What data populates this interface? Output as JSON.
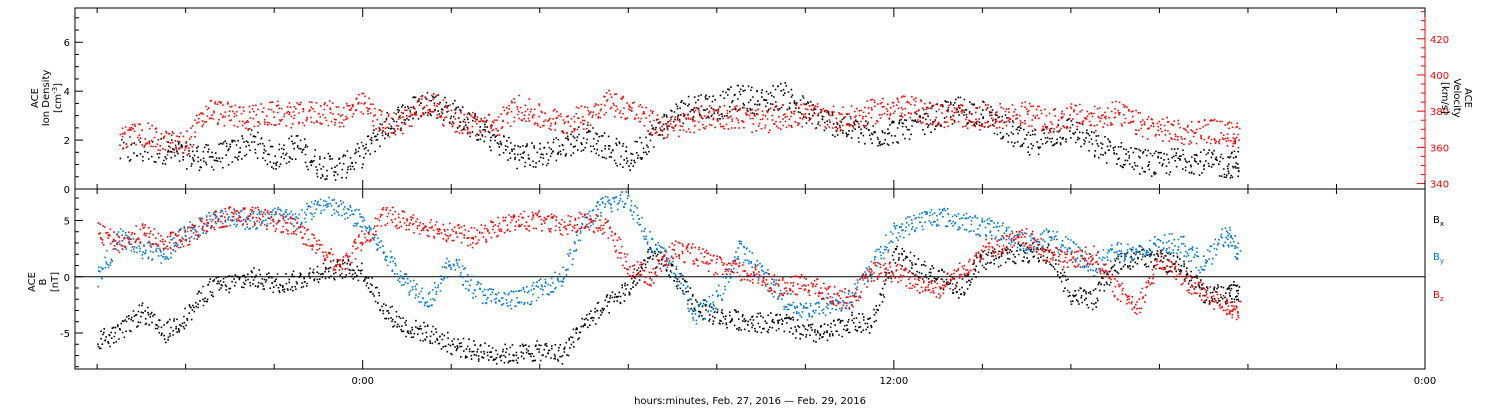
{
  "chart_data": [
    {
      "type": "scatter",
      "panel": "top",
      "left_axis": {
        "label_lines": [
          "ACE",
          "Ion Density"
        ],
        "unit": "[cm",
        "unit_sup": "-3",
        "unit_close": "]",
        "ylim": [
          0,
          7.4
        ],
        "ticks": [
          0,
          2,
          4,
          6
        ],
        "color": "#000000"
      },
      "right_axis": {
        "label_lines": [
          "ACE",
          "Velocity",
          "[km/s]"
        ],
        "ylim": [
          337,
          437
        ],
        "ticks": [
          340,
          360,
          380,
          400,
          420
        ],
        "color": "#ff0000"
      },
      "series": [
        {
          "color": "#000000",
          "axis": "left",
          "points": [
            [
              -5.5,
              1.5
            ],
            [
              -4.5,
              1.6
            ],
            [
              -4.0,
              1.4
            ],
            [
              -3.5,
              1.3
            ],
            [
              -3.0,
              1.5
            ],
            [
              -2.5,
              2.0
            ],
            [
              -2.0,
              1.3
            ],
            [
              -1.5,
              1.8
            ],
            [
              -1.0,
              1.0
            ],
            [
              -0.5,
              0.9
            ],
            [
              0.0,
              1.5
            ],
            [
              0.5,
              2.6
            ],
            [
              1.0,
              3.2
            ],
            [
              1.5,
              3.6
            ],
            [
              2.0,
              3.2
            ],
            [
              2.5,
              2.6
            ],
            [
              3.0,
              2.0
            ],
            [
              3.5,
              1.4
            ],
            [
              4.0,
              1.4
            ],
            [
              4.5,
              1.8
            ],
            [
              5.0,
              2.2
            ],
            [
              5.5,
              1.8
            ],
            [
              6.0,
              1.2
            ],
            [
              6.5,
              2.2
            ],
            [
              7.0,
              3.0
            ],
            [
              7.5,
              3.5
            ],
            [
              8.0,
              3.4
            ],
            [
              8.5,
              3.8
            ],
            [
              9.0,
              3.6
            ],
            [
              9.5,
              3.9
            ],
            [
              10.0,
              3.2
            ],
            [
              10.5,
              2.8
            ],
            [
              11.0,
              2.5
            ],
            [
              11.5,
              2.2
            ],
            [
              12.0,
              2.4
            ],
            [
              12.5,
              2.7
            ],
            [
              13.0,
              3.0
            ],
            [
              13.5,
              3.3
            ],
            [
              14.0,
              3.1
            ],
            [
              14.5,
              2.5
            ],
            [
              15.0,
              1.8
            ],
            [
              15.5,
              2.2
            ],
            [
              16.0,
              2.5
            ],
            [
              16.5,
              1.8
            ],
            [
              17.0,
              1.5
            ],
            [
              17.5,
              1.2
            ],
            [
              18.0,
              1.0
            ],
            [
              18.5,
              1.3
            ],
            [
              19.0,
              1.1
            ],
            [
              19.5,
              1.0
            ],
            [
              19.8,
              1.1
            ]
          ]
        },
        {
          "color": "#ff0000",
          "axis": "right",
          "points": [
            [
              -5.5,
              365
            ],
            [
              -5.0,
              368
            ],
            [
              -4.5,
              363
            ],
            [
              -4.0,
              362
            ],
            [
              -3.5,
              381
            ],
            [
              -3.0,
              378
            ],
            [
              -2.5,
              377
            ],
            [
              -2.0,
              379
            ],
            [
              -1.5,
              378
            ],
            [
              -1.0,
              380
            ],
            [
              -0.5,
              378
            ],
            [
              0.0,
              384
            ],
            [
              0.5,
              372
            ],
            [
              1.0,
              376
            ],
            [
              1.5,
              386
            ],
            [
              2.0,
              376
            ],
            [
              2.5,
              373
            ],
            [
              3.0,
              372
            ],
            [
              3.5,
              383
            ],
            [
              4.0,
              377
            ],
            [
              4.5,
              374
            ],
            [
              5.0,
              377
            ],
            [
              5.5,
              386
            ],
            [
              6.0,
              382
            ],
            [
              6.5,
              374
            ],
            [
              7.0,
              371
            ],
            [
              7.5,
              376
            ],
            [
              8.0,
              378
            ],
            [
              8.5,
              377
            ],
            [
              9.0,
              374
            ],
            [
              9.5,
              378
            ],
            [
              10.0,
              378
            ],
            [
              10.5,
              377
            ],
            [
              11.0,
              376
            ],
            [
              11.5,
              380
            ],
            [
              12.0,
              383
            ],
            [
              12.5,
              381
            ],
            [
              13.0,
              378
            ],
            [
              13.5,
              378
            ],
            [
              14.0,
              377
            ],
            [
              14.5,
              378
            ],
            [
              15.0,
              379
            ],
            [
              15.5,
              374
            ],
            [
              16.0,
              378
            ],
            [
              16.5,
              376
            ],
            [
              17.0,
              380
            ],
            [
              17.5,
              373
            ],
            [
              18.0,
              371
            ],
            [
              18.5,
              368
            ],
            [
              19.0,
              370
            ],
            [
              19.5,
              368
            ],
            [
              19.8,
              367
            ]
          ]
        }
      ]
    },
    {
      "type": "scatter",
      "panel": "bottom",
      "left_axis": {
        "label_lines": [
          "ACE",
          "B",
          "[nT]"
        ],
        "ylim": [
          -8.2,
          7.8
        ],
        "ticks": [
          -5,
          0,
          5
        ],
        "color": "#000000"
      },
      "legend": [
        {
          "label": "B",
          "sub": "x",
          "color": "#000000"
        },
        {
          "label": "B",
          "sub": "y",
          "color": "#0078d7"
        },
        {
          "label": "B",
          "sub": "z",
          "color": "#ff0000"
        }
      ],
      "zero_line": true,
      "series": [
        {
          "name": "Bx",
          "color": "#000000",
          "points": [
            [
              -6.0,
              -5.5
            ],
            [
              -5.5,
              -5.0
            ],
            [
              -5.0,
              -3.0
            ],
            [
              -4.5,
              -5.0
            ],
            [
              -4.0,
              -3.5
            ],
            [
              -3.5,
              -1.0
            ],
            [
              -3.0,
              -0.5
            ],
            [
              -2.5,
              0.0
            ],
            [
              -2.0,
              -0.5
            ],
            [
              -1.5,
              -0.3
            ],
            [
              -1.0,
              0.5
            ],
            [
              -0.5,
              0.8
            ],
            [
              0.0,
              0.5
            ],
            [
              0.5,
              -3.0
            ],
            [
              1.0,
              -4.5
            ],
            [
              1.5,
              -5.0
            ],
            [
              2.0,
              -6.0
            ],
            [
              2.5,
              -6.5
            ],
            [
              3.0,
              -6.8
            ],
            [
              3.5,
              -6.8
            ],
            [
              4.0,
              -6.5
            ],
            [
              4.5,
              -6.8
            ],
            [
              5.0,
              -4.0
            ],
            [
              5.5,
              -2.5
            ],
            [
              6.0,
              -1.0
            ],
            [
              6.5,
              2.0
            ],
            [
              7.0,
              0.5
            ],
            [
              7.5,
              -2.5
            ],
            [
              8.0,
              -3.5
            ],
            [
              8.5,
              -3.8
            ],
            [
              9.0,
              -4.0
            ],
            [
              9.5,
              -4.0
            ],
            [
              10.0,
              -5.0
            ],
            [
              10.5,
              -5.0
            ],
            [
              11.0,
              -4.0
            ],
            [
              11.5,
              -4.2
            ],
            [
              12.0,
              2.0
            ],
            [
              12.5,
              1.0
            ],
            [
              13.0,
              0.0
            ],
            [
              13.5,
              -1.0
            ],
            [
              14.0,
              1.5
            ],
            [
              14.5,
              2.0
            ],
            [
              15.0,
              2.2
            ],
            [
              15.5,
              2.0
            ],
            [
              16.0,
              -1.5
            ],
            [
              16.5,
              -2.0
            ],
            [
              17.0,
              1.0
            ],
            [
              17.5,
              2.0
            ],
            [
              18.0,
              1.5
            ],
            [
              18.5,
              1.0
            ],
            [
              19.0,
              -1.5
            ],
            [
              19.5,
              -1.5
            ],
            [
              19.8,
              -1.0
            ]
          ]
        },
        {
          "name": "By",
          "color": "#0078d7",
          "points": [
            [
              -6.0,
              0.0
            ],
            [
              -5.5,
              3.5
            ],
            [
              -5.0,
              2.5
            ],
            [
              -4.5,
              2.0
            ],
            [
              -4.0,
              4.0
            ],
            [
              -3.5,
              5.0
            ],
            [
              -3.0,
              5.5
            ],
            [
              -2.5,
              5.0
            ],
            [
              -2.0,
              5.5
            ],
            [
              -1.5,
              5.0
            ],
            [
              -1.0,
              6.5
            ],
            [
              -0.5,
              6.0
            ],
            [
              0.0,
              5.0
            ],
            [
              0.5,
              2.0
            ],
            [
              1.0,
              -0.5
            ],
            [
              1.5,
              -2.0
            ],
            [
              2.0,
              1.5
            ],
            [
              2.5,
              -1.0
            ],
            [
              3.0,
              -2.0
            ],
            [
              3.5,
              -2.0
            ],
            [
              4.0,
              -1.0
            ],
            [
              4.5,
              0.0
            ],
            [
              5.0,
              5.0
            ],
            [
              5.5,
              6.5
            ],
            [
              6.0,
              7.0
            ],
            [
              6.5,
              3.0
            ],
            [
              7.0,
              1.0
            ],
            [
              7.5,
              -3.5
            ],
            [
              8.0,
              -2.0
            ],
            [
              8.5,
              2.5
            ],
            [
              9.0,
              0.5
            ],
            [
              9.5,
              -2.0
            ],
            [
              10.0,
              -3.0
            ],
            [
              10.5,
              -2.5
            ],
            [
              11.0,
              -2.0
            ],
            [
              11.5,
              1.0
            ],
            [
              12.0,
              4.0
            ],
            [
              12.5,
              5.0
            ],
            [
              13.0,
              5.5
            ],
            [
              13.5,
              5.0
            ],
            [
              14.0,
              4.5
            ],
            [
              14.5,
              4.0
            ],
            [
              15.0,
              3.0
            ],
            [
              15.5,
              3.5
            ],
            [
              16.0,
              2.5
            ],
            [
              16.5,
              1.0
            ],
            [
              17.0,
              2.5
            ],
            [
              17.5,
              2.0
            ],
            [
              18.0,
              3.0
            ],
            [
              18.5,
              3.0
            ],
            [
              19.0,
              1.0
            ],
            [
              19.5,
              4.0
            ],
            [
              19.8,
              2.0
            ]
          ]
        },
        {
          "name": "Bz",
          "color": "#ff0000",
          "points": [
            [
              -6.0,
              4.0
            ],
            [
              -5.5,
              3.0
            ],
            [
              -5.0,
              4.0
            ],
            [
              -4.5,
              3.0
            ],
            [
              -4.0,
              3.5
            ],
            [
              -3.5,
              5.0
            ],
            [
              -3.0,
              5.5
            ],
            [
              -2.5,
              5.5
            ],
            [
              -2.0,
              5.0
            ],
            [
              -1.5,
              4.5
            ],
            [
              -1.0,
              2.5
            ],
            [
              -0.5,
              1.0
            ],
            [
              0.0,
              3.5
            ],
            [
              0.5,
              5.5
            ],
            [
              1.0,
              5.0
            ],
            [
              1.5,
              4.5
            ],
            [
              2.0,
              4.0
            ],
            [
              2.5,
              3.5
            ],
            [
              3.0,
              4.5
            ],
            [
              3.5,
              5.0
            ],
            [
              4.0,
              5.0
            ],
            [
              4.5,
              4.5
            ],
            [
              5.0,
              5.0
            ],
            [
              5.5,
              4.5
            ],
            [
              6.0,
              1.0
            ],
            [
              6.5,
              0.0
            ],
            [
              7.0,
              2.5
            ],
            [
              7.5,
              2.0
            ],
            [
              8.0,
              1.0
            ],
            [
              8.5,
              0.5
            ],
            [
              9.0,
              0.0
            ],
            [
              9.5,
              -1.0
            ],
            [
              10.0,
              -0.5
            ],
            [
              10.5,
              -1.5
            ],
            [
              11.0,
              -2.0
            ],
            [
              11.5,
              0.5
            ],
            [
              12.0,
              0.5
            ],
            [
              12.5,
              -0.5
            ],
            [
              13.0,
              -1.0
            ],
            [
              13.5,
              0.5
            ],
            [
              14.0,
              2.5
            ],
            [
              14.5,
              3.0
            ],
            [
              15.0,
              3.5
            ],
            [
              15.5,
              2.0
            ],
            [
              16.0,
              1.5
            ],
            [
              16.5,
              2.0
            ],
            [
              17.0,
              -1.0
            ],
            [
              17.5,
              -2.5
            ],
            [
              18.0,
              1.5
            ],
            [
              18.5,
              0.0
            ],
            [
              19.0,
              -1.5
            ],
            [
              19.5,
              -2.5
            ],
            [
              19.8,
              -3.0
            ]
          ]
        }
      ]
    }
  ],
  "x_axis": {
    "xlim": [
      -6.5,
      24
    ],
    "major_tick_labels": [
      {
        "x": 0,
        "label": "0:00"
      },
      {
        "x": 12,
        "label": "12:00"
      },
      {
        "x": 24,
        "label": "0:00"
      }
    ],
    "minor_tick_step": 2,
    "title": "hours:minutes, Feb. 27, 2016 — Feb. 29, 2016"
  }
}
